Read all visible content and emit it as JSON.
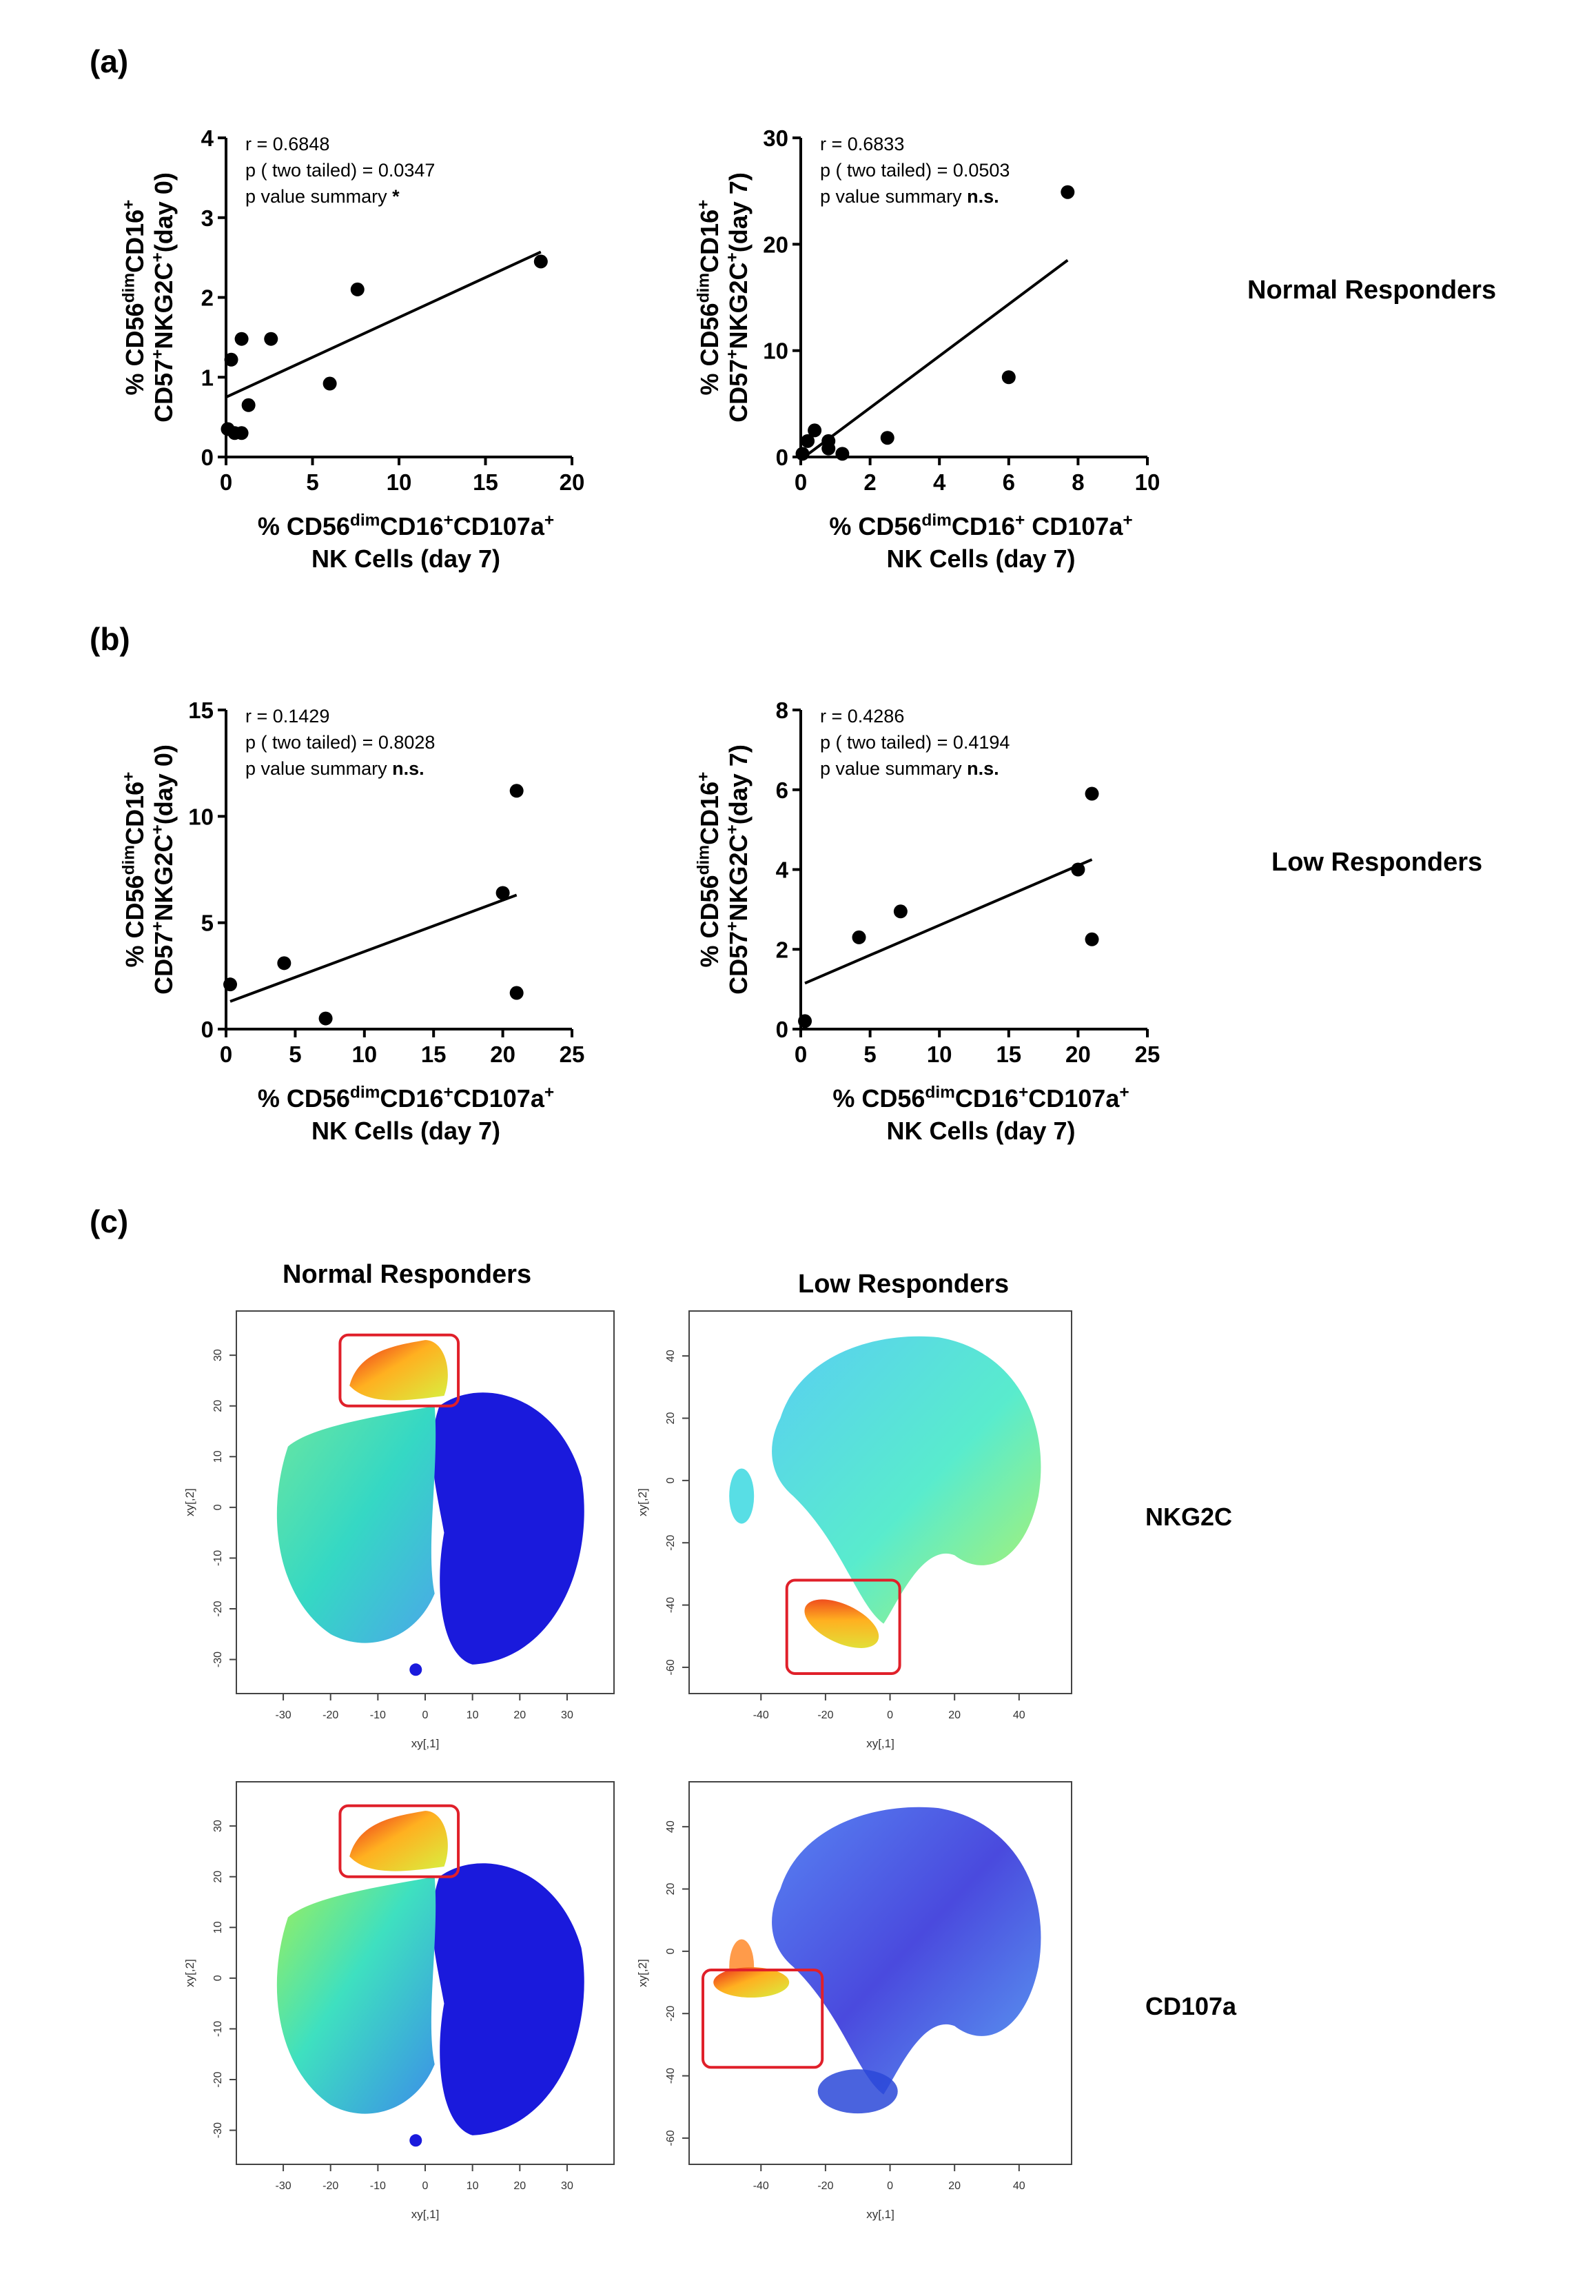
{
  "panels": {
    "a": "(a)",
    "b": "(b)",
    "c": "(c)"
  },
  "group_labels": {
    "normal": "Normal Responders",
    "low": "Low Responders"
  },
  "tsne_labels": {
    "col_normal": "Normal Responders",
    "col_low": "Low Responders",
    "row_nkg2c": "NKG2C",
    "row_cd107a": "CD107a",
    "xaxis": "xy[,1]",
    "yaxis": "xy[,2]"
  },
  "colors": {
    "points": "#000000",
    "box": "#e0202a",
    "tsne_low": "#1a1adc",
    "tsne_mid": "#3ee6c8",
    "tsne_high": "#ffd21e",
    "tsne_max": "#e8201c"
  },
  "chart_data": [
    {
      "id": "a-left",
      "type": "scatter",
      "stats": [
        "r = 0.6848",
        "p ( two tailed)  = 0.0347",
        "p value summary *"
      ],
      "ylabel_lines": [
        "% CD56dimCD16+",
        "CD57+NKG2C+(day 0)"
      ],
      "xlabel_lines": [
        "% CD56dimCD16+CD107a+",
        "NK Cells (day 7)"
      ],
      "xlim": [
        0,
        20
      ],
      "ylim": [
        0,
        4
      ],
      "xticks": [
        0,
        5,
        10,
        15,
        20
      ],
      "yticks": [
        0,
        1,
        2,
        3,
        4
      ],
      "points": [
        [
          0.1,
          0.35
        ],
        [
          0.3,
          1.22
        ],
        [
          0.5,
          0.3
        ],
        [
          0.9,
          1.48
        ],
        [
          0.9,
          0.3
        ],
        [
          1.3,
          0.65
        ],
        [
          2.6,
          1.48
        ],
        [
          6.0,
          0.92
        ],
        [
          7.6,
          2.1
        ],
        [
          18.2,
          2.45
        ]
      ],
      "fit": [
        [
          0,
          0.75
        ],
        [
          18.2,
          2.57
        ]
      ]
    },
    {
      "id": "a-right",
      "type": "scatter",
      "stats": [
        "r = 0.6833",
        "p ( two tailed)  = 0.0503",
        "p value summary n.s."
      ],
      "ylabel_lines": [
        "% CD56dimCD16+",
        "CD57+NKG2C+(day 7)"
      ],
      "xlabel_lines": [
        "% CD56dimCD16+ CD107a+",
        "NK Cells (day 7)"
      ],
      "xlim": [
        0,
        10
      ],
      "ylim": [
        0,
        30
      ],
      "xticks": [
        0,
        2,
        4,
        6,
        8,
        10
      ],
      "yticks": [
        0,
        10,
        20,
        30
      ],
      "points": [
        [
          0.05,
          0.3
        ],
        [
          0.2,
          1.5
        ],
        [
          0.4,
          2.5
        ],
        [
          0.8,
          1.5
        ],
        [
          0.8,
          0.8
        ],
        [
          1.2,
          0.3
        ],
        [
          2.5,
          1.8
        ],
        [
          6.0,
          7.5
        ],
        [
          7.7,
          24.9
        ]
      ],
      "fit": [
        [
          0.1,
          0.0
        ],
        [
          7.7,
          18.5
        ]
      ]
    },
    {
      "id": "b-left",
      "type": "scatter",
      "stats": [
        "r = 0.1429",
        "p ( two tailed)  = 0.8028",
        "p value summary n.s."
      ],
      "ylabel_lines": [
        "% CD56dimCD16+",
        "CD57+NKG2C+(day 0)"
      ],
      "xlabel_lines": [
        "% CD56dimCD16+CD107a+",
        "NK Cells (day 7)"
      ],
      "xlim": [
        0,
        25
      ],
      "ylim": [
        0,
        15
      ],
      "xticks": [
        0,
        5,
        10,
        15,
        20,
        25
      ],
      "yticks": [
        0,
        5,
        10,
        15
      ],
      "points": [
        [
          0.3,
          2.1
        ],
        [
          4.2,
          3.1
        ],
        [
          7.2,
          0.5
        ],
        [
          20.0,
          6.4
        ],
        [
          21.0,
          11.2
        ],
        [
          21.0,
          1.7
        ]
      ],
      "fit": [
        [
          0.3,
          1.3
        ],
        [
          21.0,
          6.3
        ]
      ]
    },
    {
      "id": "b-right",
      "type": "scatter",
      "stats": [
        "r = 0.4286",
        "p ( two tailed)  = 0.4194",
        "p value summary n.s."
      ],
      "ylabel_lines": [
        "% CD56dimCD16+",
        "CD57+NKG2C+(day 7)"
      ],
      "xlabel_lines": [
        "% CD56dimCD16+CD107a+",
        "NK Cells (day 7)"
      ],
      "xlim": [
        0,
        25
      ],
      "ylim": [
        0,
        8
      ],
      "xticks": [
        0,
        5,
        10,
        15,
        20,
        25
      ],
      "yticks": [
        0,
        2,
        4,
        6,
        8
      ],
      "points": [
        [
          0.3,
          0.2
        ],
        [
          4.2,
          2.3
        ],
        [
          7.2,
          2.95
        ],
        [
          20.0,
          4.0
        ],
        [
          21.0,
          5.9
        ],
        [
          21.0,
          2.25
        ]
      ],
      "fit": [
        [
          0.3,
          1.15
        ],
        [
          21.0,
          4.25
        ]
      ]
    }
  ],
  "tsne": [
    {
      "id": "nr-nkg2c",
      "xticks": [
        -30,
        -20,
        -10,
        0,
        10,
        20,
        30
      ],
      "yticks": [
        -30,
        -20,
        -10,
        0,
        10,
        20,
        30
      ]
    },
    {
      "id": "lr-nkg2c",
      "xticks": [
        -40,
        -20,
        0,
        20,
        40
      ],
      "yticks": [
        -60,
        -40,
        -20,
        0,
        20,
        40
      ]
    },
    {
      "id": "nr-cd107a",
      "xticks": [
        -30,
        -20,
        -10,
        0,
        10,
        20,
        30
      ],
      "yticks": [
        -30,
        -20,
        -10,
        0,
        10,
        20,
        30
      ]
    },
    {
      "id": "lr-cd107a",
      "xticks": [
        -40,
        -20,
        0,
        20,
        40
      ],
      "yticks": [
        -60,
        -40,
        -20,
        0,
        20,
        40
      ]
    }
  ]
}
